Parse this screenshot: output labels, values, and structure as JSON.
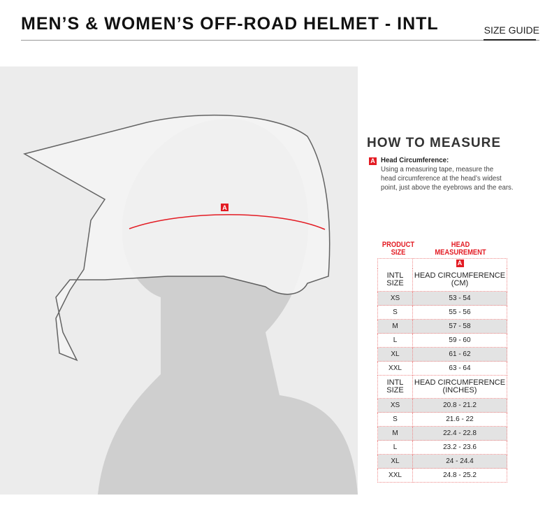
{
  "header": {
    "title": "MEN’S & WOMEN’S OFF-ROAD HELMET - INTL",
    "size_guide": "SIZE GUIDE"
  },
  "illustration": {
    "marker": "A"
  },
  "how_to": {
    "heading": "HOW TO MEASURE",
    "marker": "A",
    "label": "Head Circumference:",
    "lines": [
      "Using a measuring tape, measure the",
      "head circumference at the head’s widest",
      "point, just above the eyebrows and the ears."
    ]
  },
  "table": {
    "col1_header": [
      "PRODUCT",
      "SIZE"
    ],
    "col2_header": [
      "HEAD",
      "MEASUREMENT"
    ],
    "marker": "A",
    "cm": {
      "size_label": [
        "INTL",
        "SIZE"
      ],
      "measure_label": [
        "HEAD CIRCUMFERENCE",
        "(CM)"
      ],
      "rows": [
        [
          "XS",
          "53 - 54"
        ],
        [
          "S",
          "55 - 56"
        ],
        [
          "M",
          "57 - 58"
        ],
        [
          "L",
          "59 - 60"
        ],
        [
          "XL",
          "61 - 62"
        ],
        [
          "XXL",
          "63 - 64"
        ]
      ]
    },
    "inches": {
      "size_label": [
        "INTL",
        "SIZE"
      ],
      "measure_label": [
        "HEAD CIRCUMFERENCE",
        "(INCHES)"
      ],
      "rows": [
        [
          "XS",
          "20.8 - 21.2"
        ],
        [
          "S",
          "21.6 - 22"
        ],
        [
          "M",
          "22.4 - 22.8"
        ],
        [
          "L",
          "23.2 - 23.6"
        ],
        [
          "XL",
          "24 - 24.4"
        ],
        [
          "XXL",
          "24.8 - 25.2"
        ]
      ]
    }
  },
  "colors": {
    "accent": "#e31b23"
  }
}
